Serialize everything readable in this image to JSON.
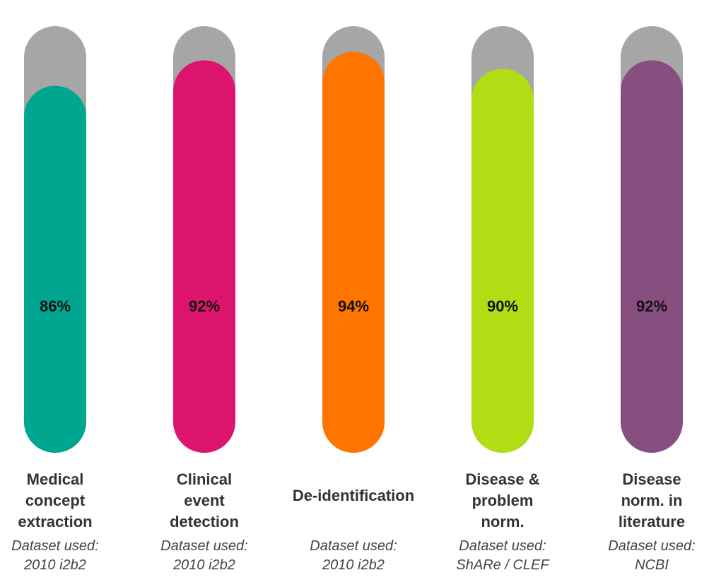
{
  "chart_data": {
    "type": "bar",
    "categories": [
      [
        "Medical",
        "concept",
        "extraction"
      ],
      [
        "Clinical",
        "event",
        "detection"
      ],
      [
        "De-identification"
      ],
      [
        "Disease &",
        "problem",
        "norm."
      ],
      [
        "Disease",
        "norm. in",
        "literature"
      ]
    ],
    "values": [
      86,
      92,
      94,
      90,
      92
    ],
    "value_labels": [
      "86%",
      "92%",
      "94%",
      "90%",
      "92%"
    ],
    "datasets": [
      [
        "Dataset used:",
        "2010 i2b2"
      ],
      [
        "Dataset used:",
        "2010 i2b2"
      ],
      [
        "Dataset used:",
        "2010 i2b2"
      ],
      [
        "Dataset used:",
        "ShARe / CLEF"
      ],
      [
        "Dataset used:",
        "NCBI"
      ]
    ],
    "ylim": [
      0,
      100
    ],
    "grid": false,
    "colors": [
      "#00a68f",
      "#dc146c",
      "#ff7500",
      "#b2dc14",
      "#874e80"
    ],
    "track_color": "#a6a6a6"
  }
}
